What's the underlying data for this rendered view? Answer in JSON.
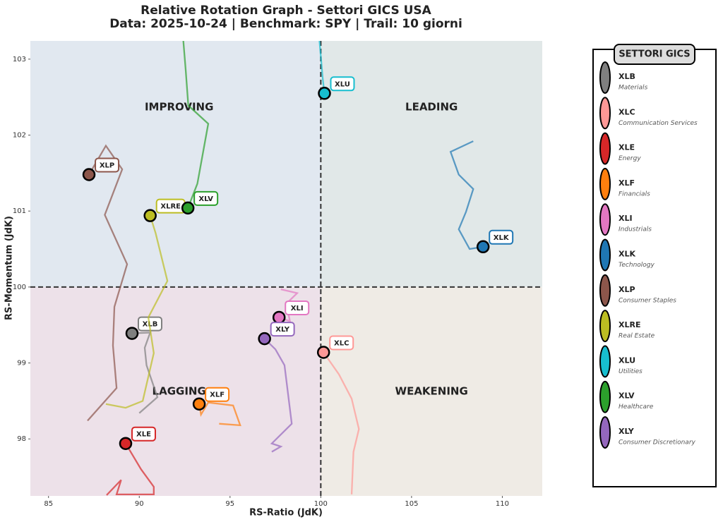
{
  "chart_data": {
    "type": "line",
    "title": "Relative Rotation Graph - Settori GICS USA",
    "subtitle": "Data: 2025-10-24 | Benchmark: SPY | Trail: 10 giorni",
    "xlabel": "RS-Ratio (JdK)",
    "ylabel": "RS-Momentum (JdK)",
    "xlim": [
      84,
      112.2
    ],
    "ylim": [
      97.25,
      103.24
    ],
    "xticks": [
      85,
      90,
      95,
      100,
      105,
      110
    ],
    "yticks": [
      98,
      99,
      100,
      101,
      102,
      103
    ],
    "reference": {
      "x": 100,
      "y": 100
    },
    "quadrants": {
      "top_left": {
        "label": "IMPROVING",
        "color": "#2b3a9a",
        "fill": "#e1e8f0"
      },
      "top_right": {
        "label": "LEADING",
        "color": "#2e8a2e",
        "fill": "#e1e8e8"
      },
      "bottom_left": {
        "label": "LAGGING",
        "color": "#a03030",
        "fill": "#ede1e9"
      },
      "bottom_right": {
        "label": "WEAKENING",
        "color": "#f5a030",
        "fill": "#efebe5"
      }
    },
    "legend_title": "SETTORI GICS",
    "series": [
      {
        "name": "XLB",
        "description": "Materials",
        "color": "#7f7f7f",
        "x": [
          90.0,
          91.0,
          90.4,
          90.3,
          90.6,
          89.6
        ],
        "y": [
          98.34,
          98.55,
          98.97,
          99.2,
          99.4,
          99.39
        ]
      },
      {
        "name": "XLC",
        "description": "Communication Services",
        "color": "#ff9896",
        "x": [
          101.7,
          101.8,
          102.1,
          101.7,
          101.0,
          100.15
        ],
        "y": [
          97.27,
          97.83,
          98.13,
          98.53,
          98.85,
          99.14
        ]
      },
      {
        "name": "XLE",
        "description": "Energy",
        "color": "#d62728",
        "x": [
          88.2,
          89.0,
          88.75,
          90.8,
          90.8,
          90.1,
          89.25
        ],
        "y": [
          97.26,
          97.46,
          97.27,
          97.27,
          97.37,
          97.6,
          97.94
        ]
      },
      {
        "name": "XLF",
        "description": "Financials",
        "color": "#ff7f0e",
        "x": [
          94.4,
          95.56,
          95.17,
          93.8,
          93.4,
          93.3
        ],
        "y": [
          98.2,
          98.18,
          98.44,
          98.48,
          98.32,
          98.46
        ]
      },
      {
        "name": "XLI",
        "description": "Industrials",
        "color": "#e377c2",
        "x": [
          97.8,
          98.7,
          98.1,
          98.3,
          97.7
        ],
        "y": [
          99.97,
          99.92,
          99.78,
          99.55,
          99.6
        ]
      },
      {
        "name": "XLK",
        "description": "Technology",
        "color": "#1f77b4",
        "x": [
          108.4,
          107.15,
          107.6,
          108.4,
          108.0,
          107.6,
          108.2,
          108.94
        ],
        "y": [
          101.92,
          101.78,
          101.48,
          101.29,
          100.99,
          100.76,
          100.5,
          100.53
        ]
      },
      {
        "name": "XLP",
        "description": "Consumer Staples",
        "color": "#8c564b",
        "x": [
          87.15,
          88.75,
          88.55,
          88.63,
          89.33,
          88.1,
          89.06,
          88.16,
          87.23
        ],
        "y": [
          98.24,
          98.67,
          99.23,
          99.74,
          100.3,
          100.95,
          101.55,
          101.86,
          101.48
        ]
      },
      {
        "name": "XLRE",
        "description": "Real Estate",
        "color": "#bcbd22",
        "x": [
          88.16,
          89.25,
          90.19,
          90.8,
          90.5,
          91.55,
          90.9,
          90.6
        ],
        "y": [
          98.46,
          98.41,
          98.5,
          99.13,
          99.6,
          100.08,
          100.71,
          100.94
        ]
      },
      {
        "name": "XLU",
        "description": "Utilities",
        "color": "#17becf",
        "x": [
          99.87,
          100.0,
          100.1,
          100.2
        ],
        "y": [
          103.4,
          103.04,
          102.76,
          102.55
        ]
      },
      {
        "name": "XLV",
        "description": "Healthcare",
        "color": "#2ca02c",
        "x": [
          92.37,
          92.56,
          92.7,
          93.8,
          93.2,
          92.68
        ],
        "y": [
          103.41,
          102.85,
          102.39,
          102.15,
          101.36,
          101.04
        ]
      },
      {
        "name": "XLY",
        "description": "Consumer Discretionary",
        "color": "#9467bd",
        "x": [
          97.3,
          97.8,
          97.3,
          98.4,
          98.0,
          97.5,
          96.9
        ],
        "y": [
          97.83,
          97.9,
          97.94,
          98.2,
          98.97,
          99.18,
          99.32
        ]
      }
    ]
  }
}
